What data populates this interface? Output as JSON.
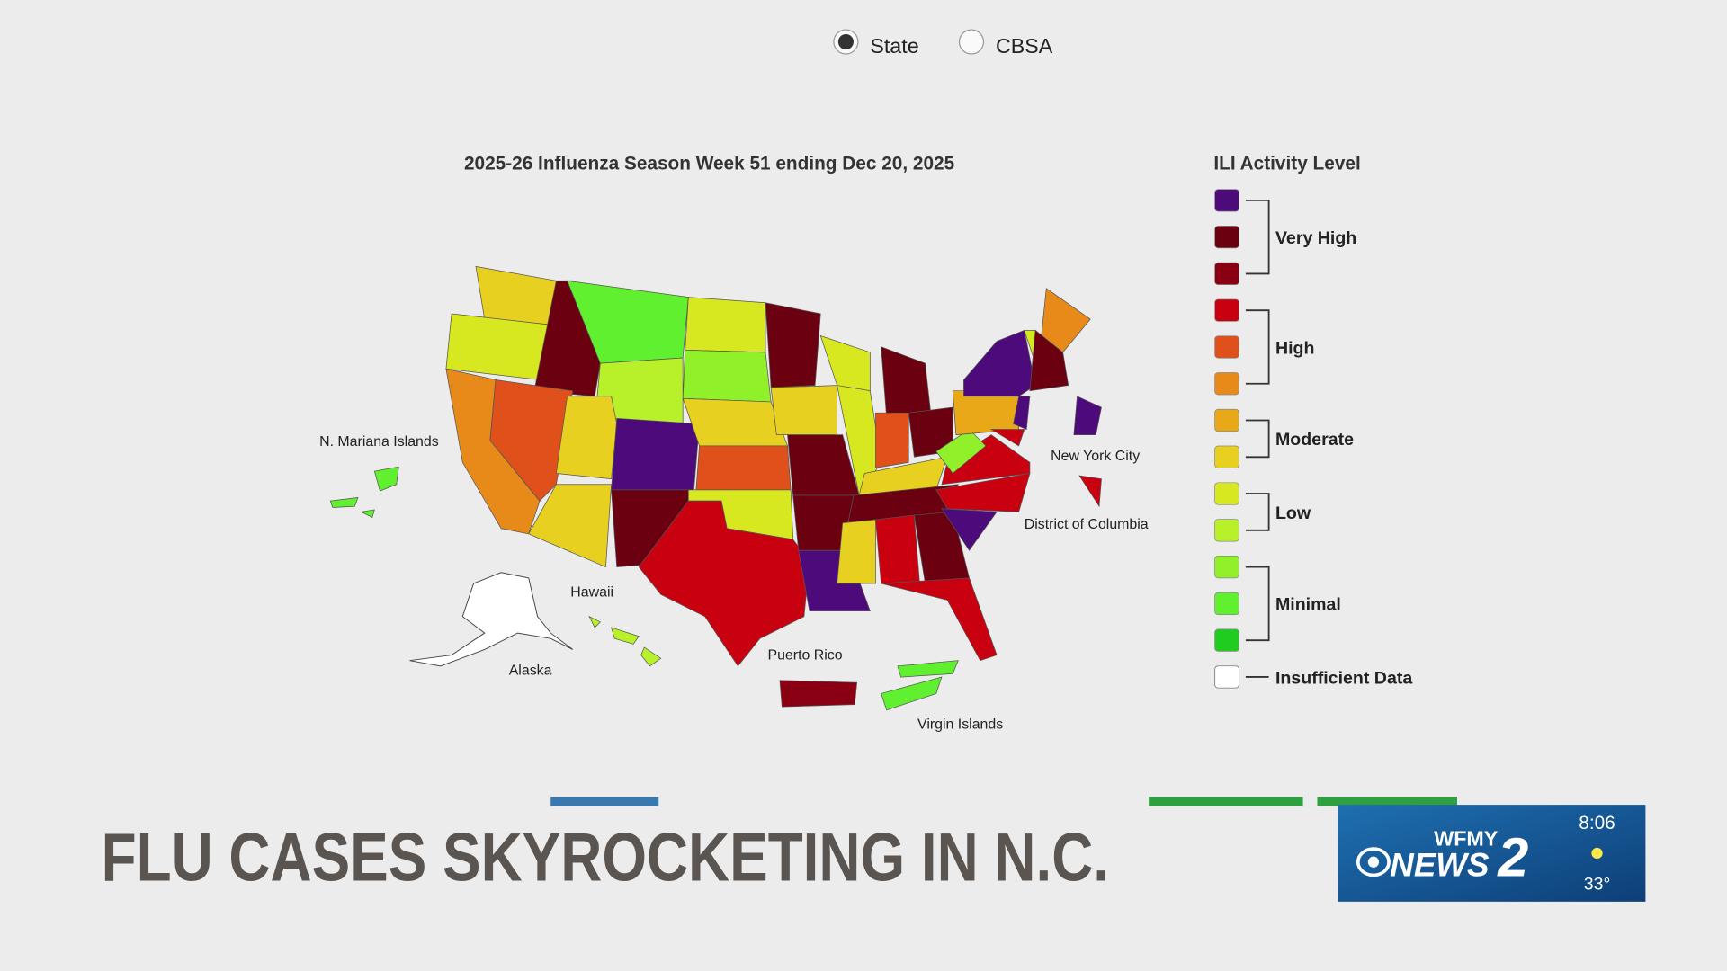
{
  "radio": {
    "options": [
      "State",
      "CBSA"
    ],
    "selected": 0
  },
  "map": {
    "title": "2025-26 Influenza Season Week 51 ending Dec 20, 2025",
    "labels": [
      "N. Mariana Islands",
      "New York City",
      "District of Columbia",
      "Hawaii",
      "Alaska",
      "Puerto Rico",
      "Virgin Islands"
    ]
  },
  "legend": {
    "title": "ILI Activity Level",
    "groups": [
      "Very High",
      "High",
      "Moderate",
      "Low",
      "Minimal"
    ],
    "insufficient": "Insufficient Data",
    "colors": [
      "#4d0a7a",
      "#6a0010",
      "#8a0012",
      "#c8000f",
      "#e0501a",
      "#e88a1a",
      "#e8a818",
      "#e8d020",
      "#d8e820",
      "#b8f02a",
      "#90f02a",
      "#60f030",
      "#20cc20"
    ]
  },
  "lower_third": {
    "headline": "FLU CASES SKYROCKETING IN N.C.",
    "station": "WFMY",
    "brand": "NEWS",
    "channel": "2",
    "time": "8:06",
    "temp": "33°"
  }
}
